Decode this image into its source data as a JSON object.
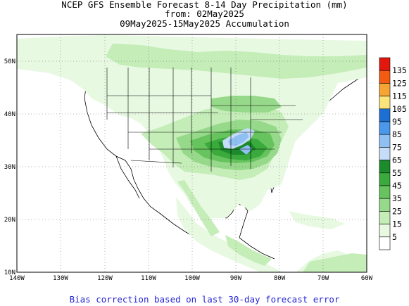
{
  "title": {
    "line1": "NCEP GFS Ensemble Forecast 8-14 Day Precipitation (mm)",
    "line2": "from: 02May2025",
    "line3": "09May2025-15May2025 Accumulation"
  },
  "footer": "Bias correction based on last 30-day forecast error",
  "axes": {
    "lon_ticks": [
      "140W",
      "130W",
      "120W",
      "110W",
      "100W",
      "90W",
      "80W",
      "70W",
      "60W"
    ],
    "lat_ticks": [
      "10N",
      "20N",
      "30N",
      "40N",
      "50N"
    ]
  },
  "legend": {
    "items": [
      {
        "label": "135",
        "color": "#e2170d"
      },
      {
        "label": "125",
        "color": "#f25b11"
      },
      {
        "label": "115",
        "color": "#f7a436"
      },
      {
        "label": "105",
        "color": "#fae47b"
      },
      {
        "label": "95",
        "color": "#1e6fd3"
      },
      {
        "label": "85",
        "color": "#4b98ea"
      },
      {
        "label": "75",
        "color": "#8fbff3"
      },
      {
        "label": "65",
        "color": "#c5ddf8"
      },
      {
        "label": "55",
        "color": "#1c8b2c"
      },
      {
        "label": "45",
        "color": "#3aaa3c"
      },
      {
        "label": "35",
        "color": "#66c35d"
      },
      {
        "label": "25",
        "color": "#97d98a"
      },
      {
        "label": "15",
        "color": "#c4edb8"
      },
      {
        "label": "5",
        "color": "#e8f9e2"
      },
      {
        "label": "",
        "color": "#ffffff"
      }
    ]
  }
}
